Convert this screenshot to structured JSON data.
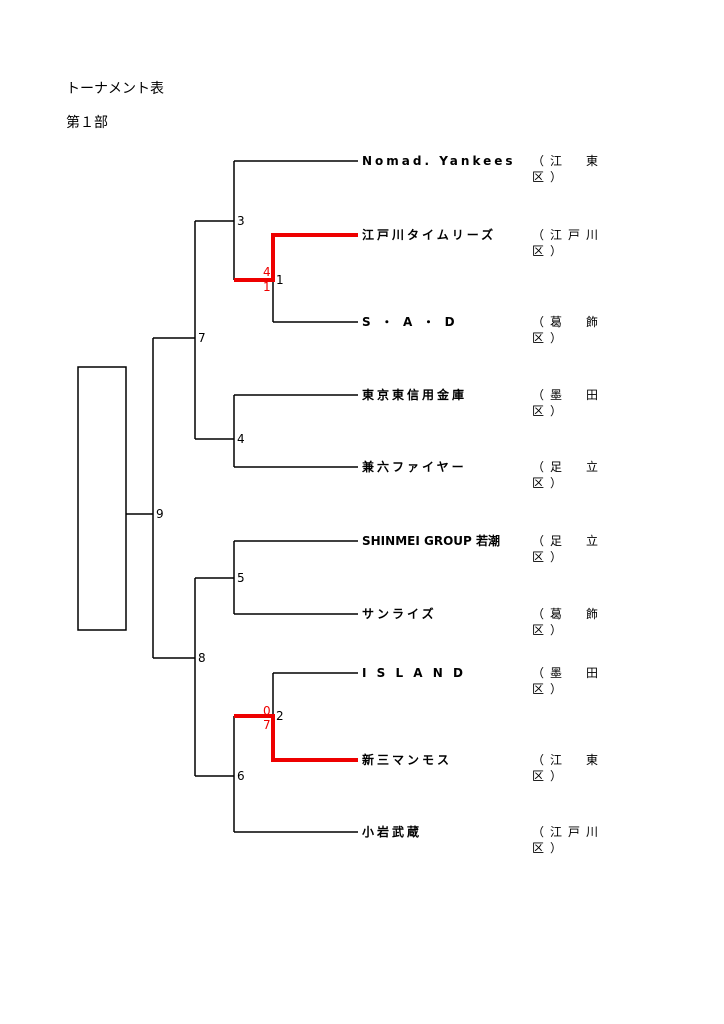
{
  "header": {
    "title": "トーナメント表",
    "division": "第１部"
  },
  "colors": {
    "line": "#000000",
    "winner_line": "#ee0000",
    "score": "#ee0000"
  },
  "teams": [
    {
      "name": "Nomad. Yankees",
      "ward": "（江　東 区）"
    },
    {
      "name": "江戸川タイムリーズ",
      "ward": "（江戸川 区）"
    },
    {
      "name": "S ・ A ・ D",
      "ward": "（葛　飾 区）"
    },
    {
      "name": "東京東信用金庫",
      "ward": "（墨　田 区）"
    },
    {
      "name": "兼六ファイヤー",
      "ward": "（足　立 区）"
    },
    {
      "name": "SHINMEI GROUP 若潮",
      "ward": "（足　立 区）"
    },
    {
      "name": "サンライズ",
      "ward": "（葛　飾 区）"
    },
    {
      "name": "I S L A N D",
      "ward": "（墨　田 区）"
    },
    {
      "name": "新三マンモス",
      "ward": "（江　東 区）"
    },
    {
      "name": "小岩武蔵",
      "ward": "（江戸川 区）"
    }
  ],
  "matches": [
    "1",
    "2",
    "3",
    "4",
    "5",
    "6",
    "7",
    "8",
    "9"
  ],
  "scores": {
    "match1": {
      "winner": "4",
      "loser": "1"
    },
    "match2": {
      "loser": "0",
      "winner": "7"
    }
  }
}
